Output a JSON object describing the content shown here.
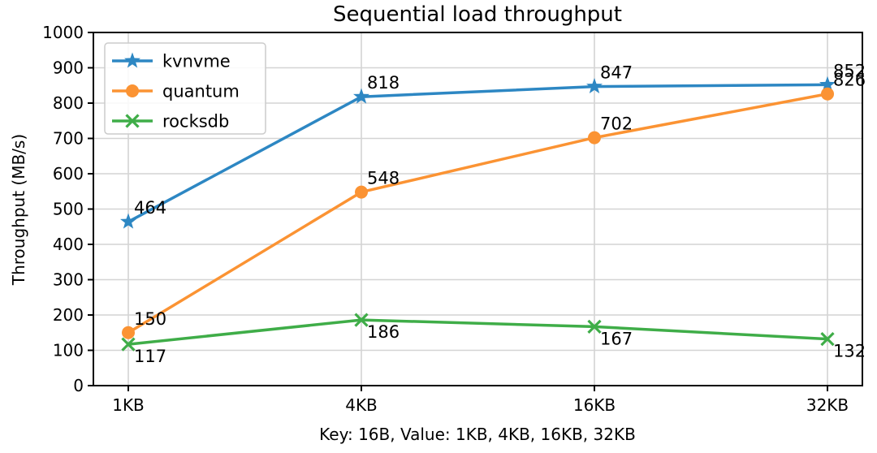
{
  "chart_data": {
    "type": "line",
    "title": "Sequential load throughput",
    "xlabel": "Key: 16B, Value: 1KB, 4KB, 16KB, 32KB",
    "ylabel": "Throughput (MB/s)",
    "categories": [
      "1KB",
      "4KB",
      "16KB",
      "32KB"
    ],
    "series": [
      {
        "name": "kvnvme",
        "values": [
          464,
          818,
          847,
          852
        ],
        "color": "#2d87c3",
        "marker": "star",
        "label_position": "above"
      },
      {
        "name": "quantum",
        "values": [
          150,
          548,
          702,
          826
        ],
        "color": "#fb9333",
        "marker": "circle",
        "label_position": "above"
      },
      {
        "name": "rocksdb",
        "values": [
          117,
          186,
          167,
          132
        ],
        "color": "#3fad48",
        "marker": "x",
        "label_position": "below"
      }
    ],
    "ylim": [
      0,
      1000
    ],
    "yticks": [
      0,
      100,
      200,
      300,
      400,
      500,
      600,
      700,
      800,
      900,
      1000
    ],
    "grid": true,
    "grid_color": "#d4d4d4",
    "frame_color": "#000000",
    "legend_position": "upper-left",
    "background_color": "#ffffff"
  }
}
